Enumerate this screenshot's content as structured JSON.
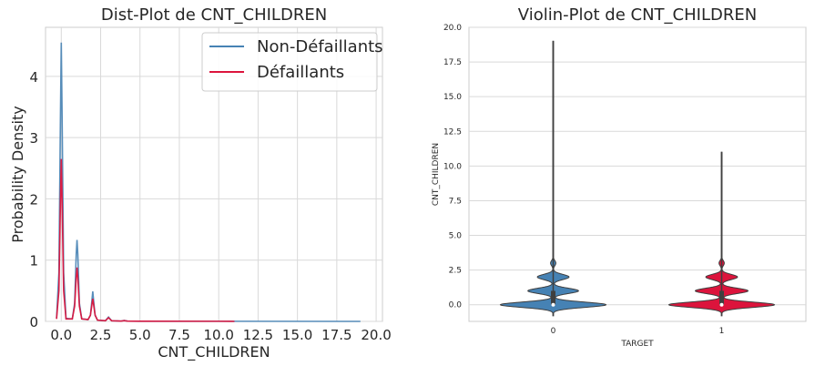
{
  "colors": {
    "non_defaillants": "#4682b4",
    "defaillants": "#dc143c",
    "grid": "#d9d9d9",
    "frame": "#cccccc",
    "text": "#262626",
    "violin_edge": "#3f3f3f"
  },
  "chart_data": [
    {
      "type": "line",
      "title": "Dist-Plot de CNT_CHILDREN",
      "xlabel": "CNT_CHILDREN",
      "ylabel": "Probability Density",
      "xlim": [
        -1.0,
        20.4
      ],
      "ylim": [
        0,
        4.8
      ],
      "xticks": [
        0.0,
        2.5,
        5.0,
        7.5,
        10.0,
        12.5,
        15.0,
        17.5,
        20.0
      ],
      "xtick_labels": [
        "0.0",
        "2.5",
        "5.0",
        "7.5",
        "10.0",
        "12.5",
        "15.0",
        "17.5",
        "20.0"
      ],
      "yticks": [
        0,
        1,
        2,
        3,
        4
      ],
      "ytick_labels": [
        "0",
        "1",
        "2",
        "3",
        "4"
      ],
      "grid": true,
      "legend_position": "top-right",
      "series": [
        {
          "name": "Non-Défaillants",
          "color_key": "non_defaillants",
          "x": [
            -0.3,
            -0.15,
            -0.05,
            0,
            0.05,
            0.15,
            0.3,
            0.7,
            0.85,
            0.95,
            1.0,
            1.05,
            1.15,
            1.3,
            1.7,
            1.85,
            1.95,
            2.0,
            2.05,
            2.15,
            2.3,
            2.8,
            3.0,
            3.2,
            3.8,
            4.0,
            4.2,
            5.0,
            10.0,
            19.0
          ],
          "y": [
            0.05,
            0.8,
            3.4,
            4.55,
            3.4,
            0.8,
            0.05,
            0.04,
            0.3,
            1.1,
            1.33,
            1.1,
            0.3,
            0.04,
            0.03,
            0.1,
            0.35,
            0.49,
            0.35,
            0.1,
            0.02,
            0.01,
            0.07,
            0.01,
            0.005,
            0.015,
            0.005,
            0.003,
            0.002,
            0.0
          ]
        },
        {
          "name": "Défaillants",
          "color_key": "defaillants",
          "x": [
            -0.3,
            -0.15,
            -0.05,
            0,
            0.05,
            0.15,
            0.3,
            0.7,
            0.85,
            0.95,
            1.0,
            1.05,
            1.15,
            1.3,
            1.7,
            1.85,
            1.95,
            2.0,
            2.05,
            2.15,
            2.3,
            2.8,
            3.0,
            3.2,
            3.8,
            4.0,
            4.2,
            5.0,
            10.0,
            11.0
          ],
          "y": [
            0.04,
            0.5,
            2.0,
            2.65,
            2.0,
            0.5,
            0.04,
            0.04,
            0.25,
            0.72,
            0.88,
            0.72,
            0.25,
            0.04,
            0.03,
            0.1,
            0.28,
            0.37,
            0.28,
            0.1,
            0.02,
            0.01,
            0.06,
            0.01,
            0.005,
            0.012,
            0.005,
            0.003,
            0.002,
            0.0
          ]
        }
      ]
    },
    {
      "type": "violin",
      "title": "Violin-Plot de CNT_CHILDREN",
      "xlabel": "TARGET",
      "ylabel": "CNT_CHILDREN",
      "categories": [
        "0",
        "1"
      ],
      "ylim": [
        -1.2,
        20.0
      ],
      "yticks": [
        0.0,
        2.5,
        5.0,
        7.5,
        10.0,
        12.5,
        15.0,
        17.5,
        20.0
      ],
      "ytick_labels": [
        "0.0",
        "2.5",
        "5.0",
        "7.5",
        "10.0",
        "12.5",
        "15.0",
        "17.5",
        "20.0"
      ],
      "grid": true,
      "series": [
        {
          "category": "0",
          "color_key": "non_defaillants",
          "min": 0,
          "max": 19,
          "median": 0,
          "q1": 0,
          "q3": 1,
          "whisker_high": 3,
          "density_levels": [
            0,
            1,
            2,
            3
          ],
          "density_widths": [
            1.0,
            0.48,
            0.3,
            0.05
          ]
        },
        {
          "category": "1",
          "color_key": "defaillants",
          "min": 0,
          "max": 11,
          "median": 0,
          "q1": 0,
          "q3": 1,
          "whisker_high": 3,
          "density_levels": [
            0,
            1,
            2,
            3
          ],
          "density_widths": [
            1.0,
            0.5,
            0.3,
            0.05
          ]
        }
      ]
    }
  ]
}
